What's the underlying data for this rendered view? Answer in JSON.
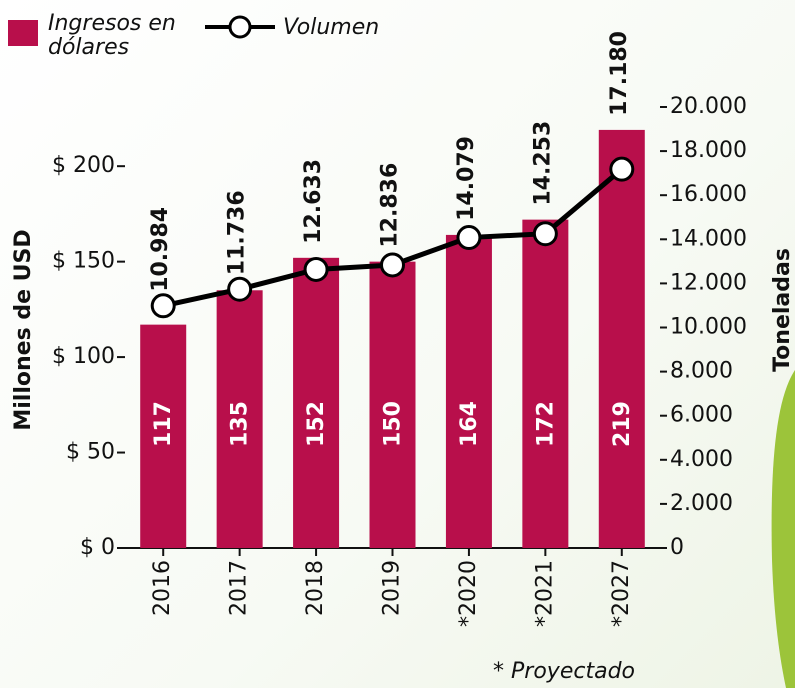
{
  "chart_data": {
    "type": "bar",
    "categories": [
      "2016",
      "2017",
      "2018",
      "2019",
      "*2020",
      "*2021",
      "*2027"
    ],
    "series": [
      {
        "name": "Ingresos en dólares",
        "color": "#b80f4b",
        "values": [
          117,
          135,
          152,
          150,
          164,
          172,
          219
        ]
      },
      {
        "name": "Volumen",
        "type": "line",
        "axis": "y2",
        "color": "#000000",
        "values": [
          10984,
          11736,
          12633,
          12836,
          14079,
          14253,
          17180
        ],
        "value_labels": [
          "10.984",
          "11.736",
          "12.633",
          "12.836",
          "14.079",
          "14.253",
          "17.180"
        ]
      }
    ],
    "y_label": "Millones de USD",
    "y2_label": "Toneladas",
    "ylim": [
      0,
      231
    ],
    "yticks": [
      {
        "value": 0,
        "label": "$ 0"
      },
      {
        "value": 50,
        "label": "$ 50"
      },
      {
        "value": 100,
        "label": "$ 100"
      },
      {
        "value": 150,
        "label": "$ 150"
      },
      {
        "value": 200,
        "label": "$ 200"
      }
    ],
    "y2lim": [
      0,
      20000
    ],
    "y2ticks": [
      0,
      {
        "value": 2000,
        "label": "2.000"
      },
      {
        "value": 4000,
        "label": "4.000"
      },
      {
        "value": 6000,
        "label": "6.000"
      },
      {
        "value": 8000,
        "label": "8.000"
      },
      {
        "value": 10000,
        "label": "10.000"
      },
      {
        "value": 12000,
        "label": "12.000"
      },
      {
        "value": 14000,
        "label": "14.000"
      },
      {
        "value": 16000,
        "label": "16.000"
      },
      {
        "value": 18000,
        "label": "18.000"
      },
      {
        "value": 20000,
        "label": "20.000"
      }
    ],
    "footnote": "* Proyectado"
  }
}
